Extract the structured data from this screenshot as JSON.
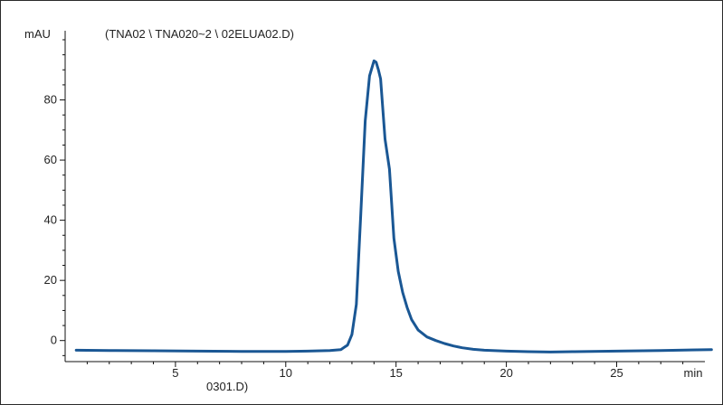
{
  "chart_data": {
    "type": "line",
    "title": "(TNA02 \\ TNA020~2 \\ 02ELUA02.D)",
    "footnote": "0301.D)",
    "ylabel": "mAU",
    "xlabel": "min",
    "xlim": [
      0,
      29
    ],
    "ylim": [
      -7,
      103
    ],
    "x_major_ticks": [
      5,
      10,
      15,
      20,
      25
    ],
    "y_major_ticks": [
      0,
      20,
      40,
      60,
      80
    ],
    "grid": false,
    "colors": {
      "trace": "#1a5794",
      "axis": "#111111",
      "text": "#222222"
    },
    "series": [
      {
        "x": [
          0.5,
          2,
          4,
          6,
          8,
          10,
          11,
          12,
          12.5,
          12.8,
          13.0,
          13.2,
          13.4,
          13.6,
          13.8,
          14.0,
          14.1,
          14.2,
          14.3,
          14.5,
          14.7,
          14.9,
          15.1,
          15.3,
          15.5,
          15.7,
          16.0,
          16.4,
          16.8,
          17.2,
          17.6,
          18.0,
          18.5,
          19.0,
          20.0,
          21.0,
          22.0,
          23.0,
          25.0,
          27.0,
          29.3
        ],
        "y": [
          -3.2,
          -3.3,
          -3.4,
          -3.5,
          -3.6,
          -3.6,
          -3.5,
          -3.3,
          -3.0,
          -1.5,
          2.0,
          12.0,
          42.0,
          73.0,
          88.0,
          93.0,
          92.5,
          90.0,
          87.0,
          67.0,
          57.0,
          34.0,
          23.0,
          16.0,
          11.0,
          7.0,
          3.5,
          1.2,
          0.0,
          -1.0,
          -1.8,
          -2.4,
          -2.9,
          -3.2,
          -3.5,
          -3.7,
          -3.8,
          -3.7,
          -3.5,
          -3.3,
          -3.0
        ]
      }
    ]
  }
}
